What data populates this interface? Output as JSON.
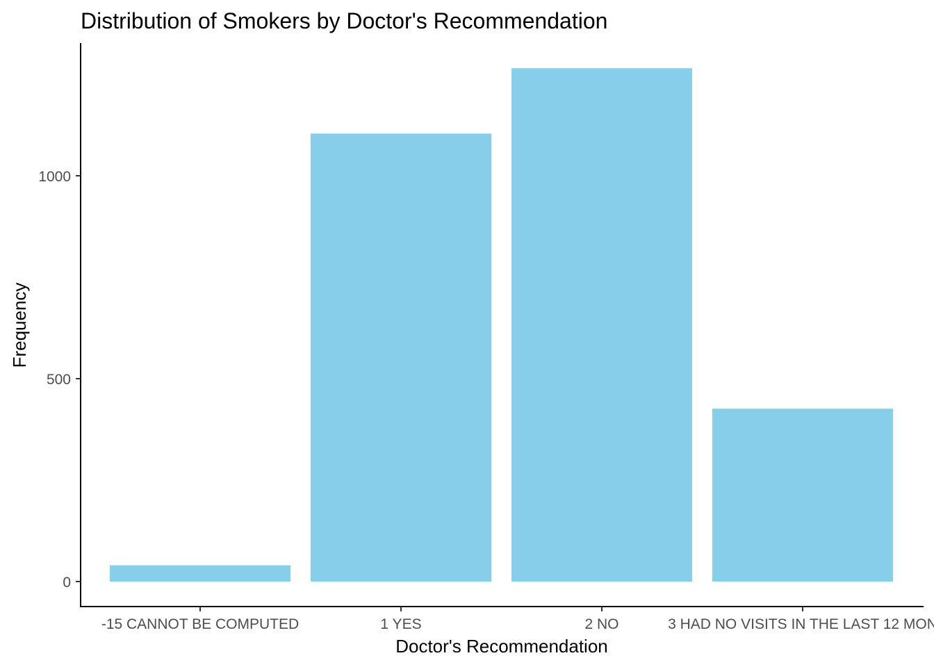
{
  "chart_data": {
    "type": "bar",
    "title": "Distribution of Smokers by Doctor's Recommendation",
    "xlabel": "Doctor's Recommendation",
    "ylabel": "Frequency",
    "categories": [
      "-15 CANNOT BE COMPUTED",
      "1 YES",
      "2 NO",
      "3 HAD NO VISITS IN THE LAST 12 MON"
    ],
    "values": [
      40,
      1104,
      1265,
      426
    ],
    "ylim": [
      0,
      1328
    ],
    "yticks": [
      0,
      500,
      1000
    ],
    "ytick_labels": [
      "0",
      "500",
      "1000"
    ],
    "grid": false,
    "bar_color": "#87ceea"
  }
}
